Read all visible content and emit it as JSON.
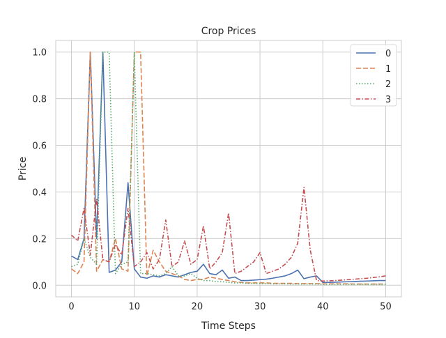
{
  "chart_data": {
    "type": "line",
    "title": "Crop Prices",
    "xlabel": "Time Steps",
    "ylabel": "Price",
    "xlim": [
      -2.5,
      52.5
    ],
    "ylim": [
      -0.05,
      1.05
    ],
    "xticks": [
      0,
      10,
      20,
      30,
      40,
      50
    ],
    "yticks": [
      0.0,
      0.2,
      0.4,
      0.6,
      0.8,
      1.0
    ],
    "xtick_labels": [
      "0",
      "10",
      "20",
      "30",
      "40",
      "50"
    ],
    "ytick_labels": [
      "0.0",
      "0.2",
      "0.4",
      "0.6",
      "0.8",
      "1.0"
    ],
    "grid": true,
    "legend_position": "top-right",
    "x": [
      0,
      1,
      2,
      3,
      4,
      5,
      6,
      7,
      8,
      9,
      10,
      11,
      12,
      13,
      14,
      15,
      16,
      17,
      18,
      19,
      20,
      21,
      22,
      23,
      24,
      25,
      26,
      27,
      28,
      29,
      30,
      31,
      32,
      33,
      34,
      35,
      36,
      37,
      38,
      39,
      40,
      41,
      42,
      43,
      44,
      45,
      46,
      47,
      48,
      49,
      50
    ],
    "series": [
      {
        "name": "0",
        "color": "#4c72b0",
        "dash": "solid",
        "values": [
          0.125,
          0.11,
          0.2,
          1.0,
          0.2,
          1.0,
          0.055,
          0.065,
          0.1,
          0.44,
          0.07,
          0.035,
          0.03,
          0.04,
          0.035,
          0.045,
          0.04,
          0.035,
          0.045,
          0.055,
          0.06,
          0.09,
          0.05,
          0.045,
          0.065,
          0.03,
          0.035,
          0.02,
          0.02,
          0.022,
          0.024,
          0.026,
          0.03,
          0.035,
          0.04,
          0.05,
          0.065,
          0.028,
          0.035,
          0.04,
          0.012,
          0.012,
          0.013,
          0.014,
          0.015,
          0.016,
          0.017,
          0.018,
          0.019,
          0.02,
          0.02
        ]
      },
      {
        "name": "1",
        "color": "#dd8452",
        "dash": "dashed",
        "values": [
          0.07,
          0.05,
          0.1,
          1.0,
          0.06,
          0.11,
          0.1,
          0.2,
          0.07,
          0.06,
          1.0,
          1.0,
          0.04,
          0.15,
          0.1,
          0.06,
          0.05,
          0.04,
          0.025,
          0.02,
          0.025,
          0.025,
          0.035,
          0.03,
          0.025,
          0.02,
          0.015,
          0.012,
          0.01,
          0.01,
          0.01,
          0.01,
          0.008,
          0.008,
          0.008,
          0.008,
          0.007,
          0.007,
          0.007,
          0.007,
          0.006,
          0.006,
          0.006,
          0.006,
          0.006,
          0.005,
          0.005,
          0.005,
          0.005,
          0.005,
          0.005
        ]
      },
      {
        "name": "2",
        "color": "#55a868",
        "dash": "dotted",
        "values": [
          0.08,
          0.09,
          0.2,
          0.12,
          0.09,
          1.0,
          1.0,
          0.05,
          0.09,
          0.1,
          1.0,
          0.05,
          0.05,
          0.045,
          0.04,
          0.05,
          0.08,
          0.04,
          0.04,
          0.05,
          0.03,
          0.02,
          0.02,
          0.015,
          0.015,
          0.012,
          0.01,
          0.01,
          0.008,
          0.008,
          0.007,
          0.007,
          0.006,
          0.006,
          0.006,
          0.005,
          0.005,
          0.005,
          0.005,
          0.005,
          0.004,
          0.004,
          0.004,
          0.004,
          0.004,
          0.004,
          0.004,
          0.004,
          0.004,
          0.004,
          0.004
        ]
      },
      {
        "name": "3",
        "color": "#c44e52",
        "dash": "dashdot",
        "values": [
          0.215,
          0.19,
          0.33,
          0.13,
          0.37,
          0.11,
          0.1,
          0.175,
          0.13,
          0.33,
          0.08,
          0.1,
          0.14,
          0.07,
          0.11,
          0.28,
          0.08,
          0.1,
          0.19,
          0.09,
          0.11,
          0.255,
          0.07,
          0.1,
          0.14,
          0.31,
          0.05,
          0.06,
          0.08,
          0.1,
          0.14,
          0.05,
          0.06,
          0.07,
          0.09,
          0.12,
          0.18,
          0.42,
          0.15,
          0.02,
          0.018,
          0.019,
          0.02,
          0.022,
          0.024,
          0.026,
          0.028,
          0.03,
          0.033,
          0.036,
          0.04
        ]
      }
    ]
  }
}
